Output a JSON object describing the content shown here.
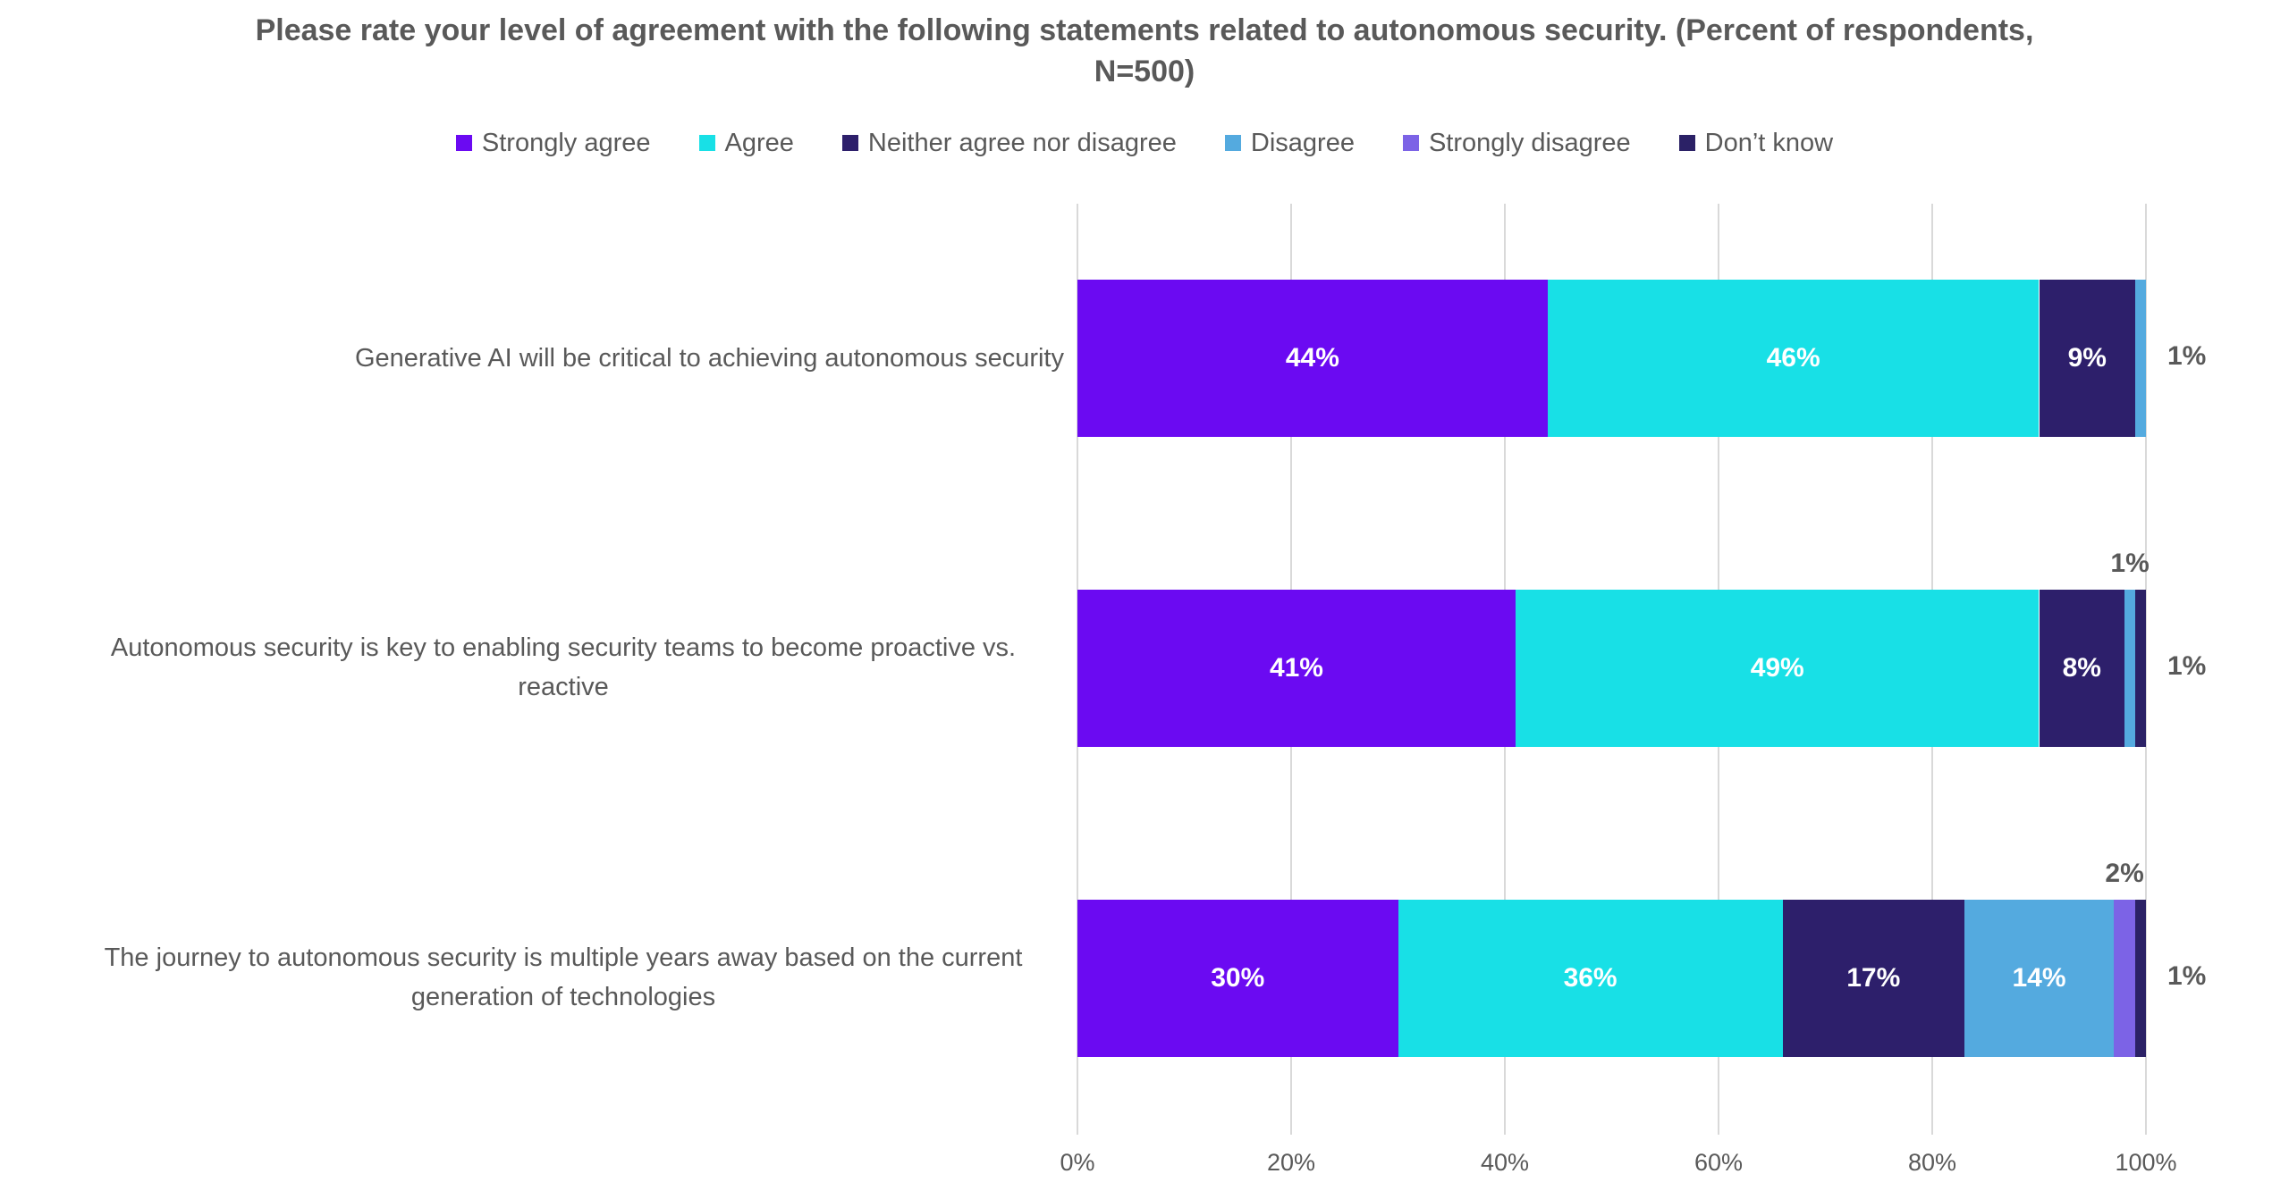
{
  "chart_data": {
    "type": "bar",
    "variant": "horizontal-stacked",
    "title": "Please rate your level of agreement with the following statements related to autonomous security. (Percent of respondents, N=500)",
    "xlabel": "",
    "ylabel": "",
    "xlim": [
      0,
      100
    ],
    "grid": true,
    "legend_position": "top",
    "data_label_unit": "%",
    "x_ticks": [
      "0%",
      "20%",
      "40%",
      "60%",
      "80%",
      "100%"
    ],
    "categories": [
      "Generative AI will be critical to achieving autonomous security",
      "Autonomous security is key to enabling security teams to become proactive vs. reactive",
      "The journey to autonomous security is multiple years away based on the current generation of technologies"
    ],
    "series": [
      {
        "name": "Strongly agree",
        "color": "#6B0AF2",
        "values": [
          44,
          41,
          30
        ]
      },
      {
        "name": "Agree",
        "color": "#18E0E6",
        "values": [
          46,
          49,
          36
        ]
      },
      {
        "name": "Neither agree nor disagree",
        "color": "#2D1F6B",
        "values": [
          9,
          8,
          17
        ]
      },
      {
        "name": "Disagree",
        "color": "#54AADF",
        "values": [
          1,
          1,
          14
        ]
      },
      {
        "name": "Strongly disagree",
        "color": "#7C63E6",
        "values": [
          0,
          0,
          2
        ]
      },
      {
        "name": "Don’t know",
        "color": "#2B2166",
        "values": [
          0,
          1,
          1
        ]
      }
    ],
    "outside_labels": [
      {
        "row": 0,
        "series": "Disagree",
        "text": "1%",
        "position": "right"
      },
      {
        "row": 1,
        "series": "Disagree",
        "text": "1%",
        "position": "above"
      },
      {
        "row": 1,
        "series": "Don’t know",
        "text": "1%",
        "position": "right"
      },
      {
        "row": 2,
        "series": "Strongly disagree",
        "text": "2%",
        "position": "above"
      },
      {
        "row": 2,
        "series": "Don’t know",
        "text": "1%",
        "position": "right"
      }
    ]
  },
  "colors": {
    "text": "#595959",
    "gridline": "#D9D9D9",
    "inside_label": "#FFFFFF",
    "background": "#FFFFFF"
  }
}
